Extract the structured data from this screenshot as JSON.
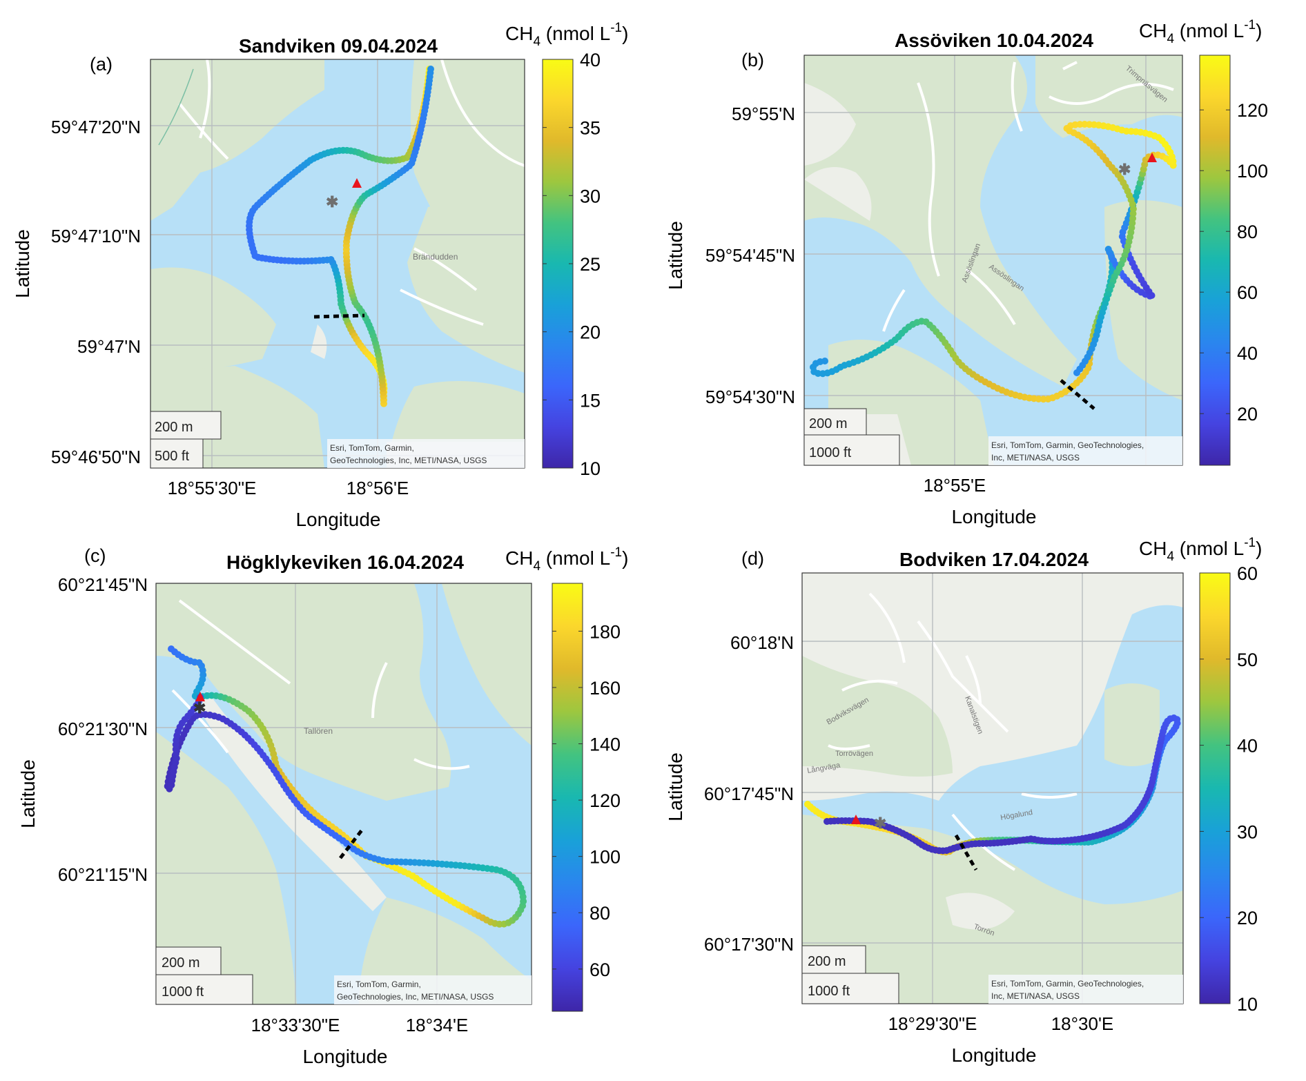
{
  "colors": {
    "water": "#b7e0f7",
    "land_green": "#d8e6cf",
    "land_light": "#edefe9",
    "road": "#ffffff",
    "grid": "#b8bdc0",
    "marker_triangle": "#e8141c",
    "marker_star": "#6f6f6f",
    "marker_star_c": "#333333",
    "dashed_line": "#000000"
  },
  "colormap": "parula",
  "chart_data": [
    {
      "type": "map-track",
      "panel_label": "(a)",
      "title": "Sandviken 09.04.2024",
      "xlabel": "Longitude",
      "ylabel": "Latitude",
      "x_ticks": [
        "18°55'30\"E",
        "18°56'E"
      ],
      "y_ticks": [
        "59°47'20\"N",
        "59°47'10\"N",
        "59°47'N",
        "59°46'50\"N"
      ],
      "colorbar": {
        "label": "CH4 (nmol L-1)",
        "label_main": "CH",
        "label_sub": "4",
        "label_rest": " (nmol L",
        "label_sup": "-1",
        "label_close": ")",
        "min": 10,
        "max": 40,
        "ticks": [
          10,
          15,
          20,
          25,
          30,
          35,
          40
        ]
      },
      "scalebar": [
        "200 m",
        "500 ft"
      ],
      "attribution": [
        "Esri, TomTom, Garmin,",
        "GeoTechnologies, Inc, METI/NASA, USGS"
      ],
      "map_labels": [
        "Brändudden"
      ],
      "track_ch4": [
        39,
        38,
        36,
        33,
        30,
        28,
        25,
        22,
        20,
        19,
        18,
        17,
        17,
        17,
        18,
        20,
        25,
        28,
        35,
        38,
        39,
        36,
        32,
        29,
        27,
        29,
        33,
        36,
        33,
        27,
        22,
        19,
        18,
        18,
        19,
        20
      ]
    },
    {
      "type": "map-track",
      "panel_label": "(b)",
      "title": "Assöviken 10.04.2024",
      "xlabel": "Longitude",
      "ylabel": "Latitude",
      "x_ticks": [
        "18°55'E"
      ],
      "y_ticks": [
        "59°55'N",
        "59°54'45\"N",
        "59°54'30\"N"
      ],
      "colorbar": {
        "label": "CH4 (nmol L-1)",
        "label_main": "CH",
        "label_sub": "4",
        "label_rest": " (nmol L",
        "label_sup": "-1",
        "label_close": ")",
        "min": 3,
        "max": 138,
        "ticks": [
          20,
          40,
          60,
          80,
          100,
          120
        ]
      },
      "scalebar": [
        "200 m",
        "1000 ft"
      ],
      "attribution": [
        "Esri, TomTom, Garmin, GeoTechnologies,",
        "Inc, METI/NASA, USGS"
      ],
      "map_labels": [
        "Assöslingan",
        "Assöslingan",
        "Trimpnäsvägen"
      ],
      "track_ch4": [
        50,
        55,
        60,
        70,
        80,
        90,
        100,
        110,
        115,
        120,
        120,
        115,
        100,
        80,
        60,
        40,
        20,
        15,
        20,
        40,
        60,
        100,
        130,
        135,
        132,
        130,
        125,
        120,
        110,
        100,
        95,
        90,
        80,
        60,
        50,
        45
      ]
    },
    {
      "type": "map-track",
      "panel_label": "(c)",
      "title": "Högklykeviken 16.04.2024",
      "xlabel": "Longitude",
      "ylabel": "Latitude",
      "x_ticks": [
        "18°33'30\"E",
        "18°34'E"
      ],
      "y_ticks": [
        "60°21'45\"N",
        "60°21'30\"N",
        "60°21'15\"N"
      ],
      "colorbar": {
        "label": "CH4 (nmol L-1)",
        "label_main": "CH",
        "label_sub": "4",
        "label_rest": " (nmol L",
        "label_sup": "-1",
        "label_close": ")",
        "min": 45,
        "max": 197,
        "ticks": [
          60,
          80,
          100,
          120,
          140,
          160,
          180
        ]
      },
      "scalebar": [
        "200 m",
        "1000 ft"
      ],
      "attribution": [
        "Esri, TomTom, Garmin,",
        "GeoTechnologies, Inc, METI/NASA, USGS"
      ],
      "map_labels": [
        "Tallören"
      ],
      "track_ch4": [
        80,
        90,
        110,
        140,
        150,
        160,
        170,
        175,
        180,
        185,
        190,
        192,
        190,
        160,
        140,
        130,
        120,
        110,
        100,
        90,
        80,
        75,
        70,
        65,
        60,
        55,
        52,
        50,
        50,
        52,
        55,
        58
      ]
    },
    {
      "type": "map-track",
      "panel_label": "(d)",
      "title": "Bodviken 17.04.2024",
      "xlabel": "Longitude",
      "ylabel": "Latitude",
      "x_ticks": [
        "18°29'30\"E",
        "18°30'E"
      ],
      "y_ticks": [
        "60°18'N",
        "60°17'45\"N",
        "60°17'30\"N"
      ],
      "colorbar": {
        "label": "CH4 (nmol L-1)",
        "label_main": "CH",
        "label_sub": "4",
        "label_rest": " (nmol L",
        "label_sup": "-1",
        "label_close": ")",
        "min": 10,
        "max": 60,
        "ticks": [
          10,
          20,
          30,
          40,
          50,
          60
        ]
      },
      "scalebar": [
        "200 m",
        "1000 ft"
      ],
      "attribution": [
        "Esri, TomTom, Garmin, GeoTechnologies,",
        "Inc, METI/NASA, USGS"
      ],
      "map_labels": [
        "Bodviksvägen",
        "Torrövägen",
        "Kanalstigen",
        "Högalund",
        "Långväga",
        "Torrön"
      ],
      "track_ch4": [
        58,
        57,
        56,
        55,
        54,
        52,
        48,
        40,
        38,
        36,
        34,
        32,
        30,
        28,
        24,
        20,
        18,
        16,
        15,
        14,
        14,
        13,
        13,
        13,
        12,
        12,
        12,
        12,
        12,
        12,
        12,
        12
      ]
    }
  ]
}
